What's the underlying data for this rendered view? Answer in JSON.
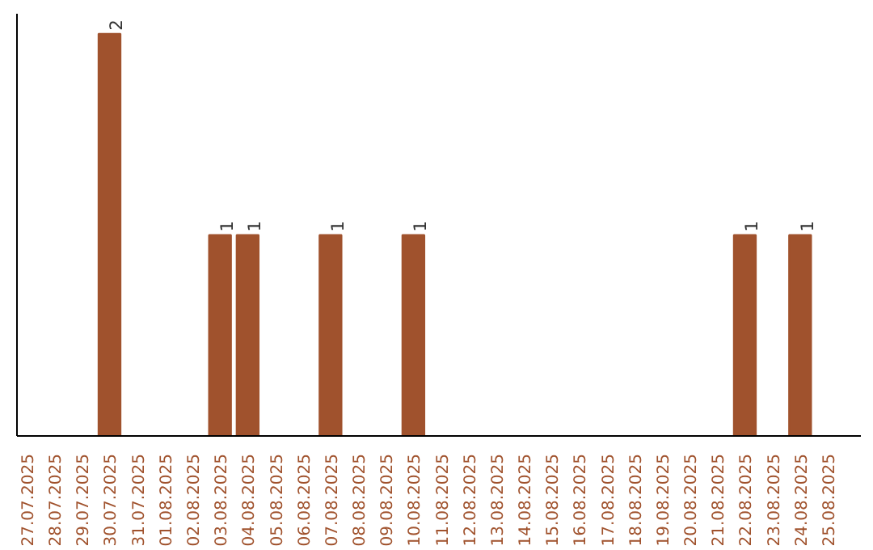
{
  "chart_data": {
    "type": "bar",
    "categories": [
      "27.07.2025",
      "28.07.2025",
      "29.07.2025",
      "30.07.2025",
      "31.07.2025",
      "01.08.2025",
      "02.08.2025",
      "03.08.2025",
      "04.08.2025",
      "05.08.2025",
      "06.08.2025",
      "07.08.2025",
      "08.08.2025",
      "09.08.2025",
      "10.08.2025",
      "11.08.2025",
      "12.08.2025",
      "13.08.2025",
      "14.08.2025",
      "15.08.2025",
      "16.08.2025",
      "17.08.2025",
      "18.08.2025",
      "19.08.2025",
      "20.08.2025",
      "21.08.2025",
      "22.08.2025",
      "23.08.2025",
      "24.08.2025",
      "25.08.2025"
    ],
    "series": [
      {
        "color": "#a0522d",
        "values": [
          0,
          0,
          0,
          2,
          0,
          0,
          0,
          1,
          1,
          0,
          0,
          1,
          0,
          0,
          1,
          0,
          0,
          0,
          0,
          0,
          0,
          0,
          0,
          0,
          0,
          0,
          1,
          0,
          1,
          0
        ],
        "value_labels": [
          null,
          null,
          null,
          "2",
          null,
          null,
          null,
          "1",
          "1",
          null,
          null,
          "1",
          null,
          null,
          "1",
          null,
          null,
          null,
          null,
          null,
          null,
          null,
          null,
          null,
          null,
          null,
          "1",
          null,
          "1",
          null
        ]
      }
    ],
    "ylim": [
      0,
      2.1
    ],
    "tick_labels": "x",
    "grid": false
  }
}
